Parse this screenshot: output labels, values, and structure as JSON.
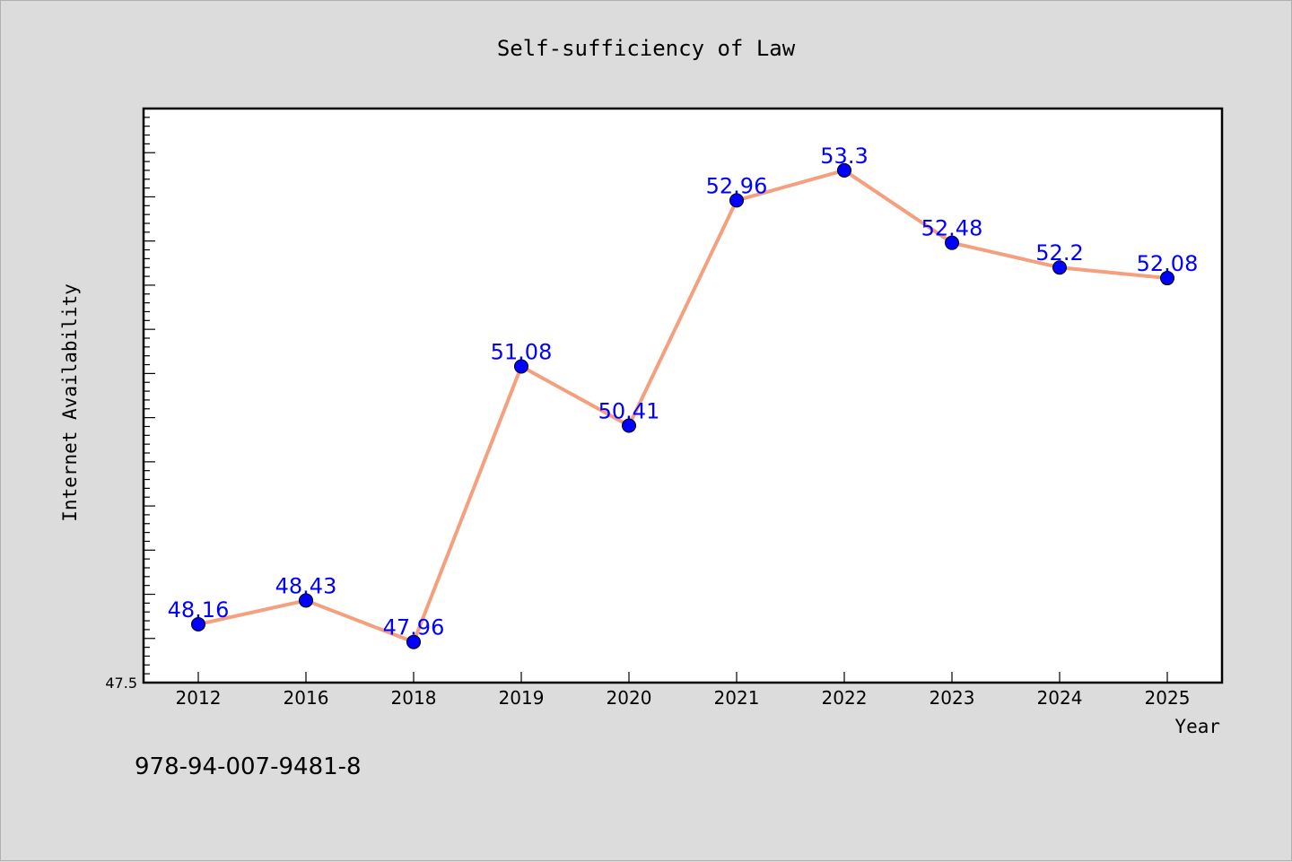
{
  "chart_data": {
    "type": "line",
    "title": "Self-sufficiency of Law",
    "xlabel": "Year",
    "ylabel": "Internet Availability",
    "categories": [
      "2012",
      "2016",
      "2018",
      "2019",
      "2020",
      "2021",
      "2022",
      "2023",
      "2024",
      "2025"
    ],
    "values": [
      48.16,
      48.43,
      47.96,
      51.08,
      50.41,
      52.96,
      53.3,
      52.48,
      52.2,
      52.08
    ],
    "data_labels": [
      "48.16",
      "48.43",
      "47.96",
      "51.08",
      "50.41",
      "52.96",
      "53.3",
      "52.48",
      "52.2",
      "52.08"
    ],
    "ylim": [
      47.5,
      54.0
    ],
    "ytick_labels": [
      "47.5"
    ],
    "grid": false,
    "colors": {
      "line": "#f4a07e",
      "marker": "#0000ff",
      "data_label": "#0000ff",
      "plot_bg": "#ffffff",
      "page_bg": "#dcdcdc"
    }
  },
  "footer": {
    "isbn": "978-94-007-9481-8"
  }
}
